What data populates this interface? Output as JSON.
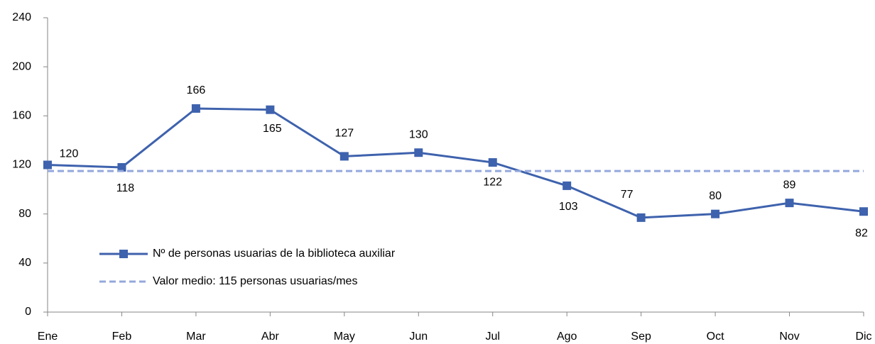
{
  "chart_data": {
    "type": "line",
    "categories": [
      "Ene",
      "Feb",
      "Mar",
      "Abr",
      "May",
      "Jun",
      "Jul",
      "Ago",
      "Sep",
      "Oct",
      "Nov",
      "Dic"
    ],
    "series": [
      {
        "name": "Nº de personas usuarias de la biblioteca auxiliar",
        "color": "#3e62ad",
        "marker": "square",
        "values": [
          120,
          118,
          166,
          165,
          127,
          130,
          122,
          103,
          77,
          80,
          89,
          82
        ]
      },
      {
        "name": "Valor medio: 115 personas usuarias/mes",
        "color": "#94a8dc",
        "dashed": true,
        "values": [
          115,
          115,
          115,
          115,
          115,
          115,
          115,
          115,
          115,
          115,
          115,
          115
        ]
      }
    ],
    "ylim": [
      0,
      240
    ],
    "yticks": [
      0,
      40,
      80,
      120,
      160,
      200,
      240
    ],
    "legend": "lower left"
  }
}
